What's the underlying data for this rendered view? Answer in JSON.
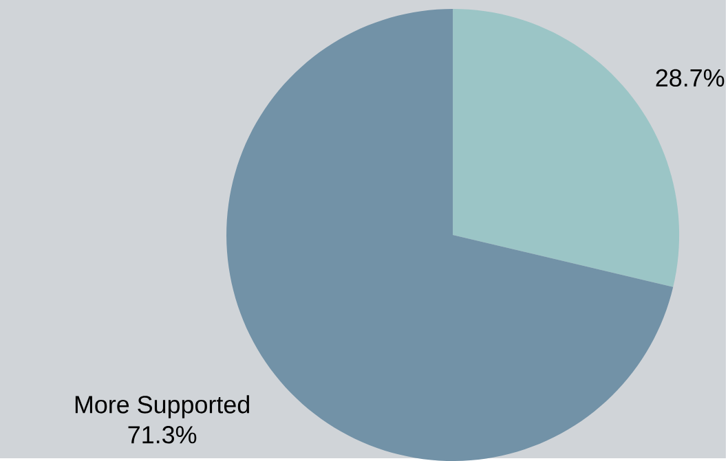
{
  "chart_data": {
    "type": "pie",
    "categories": [
      null,
      "More Supported"
    ],
    "values": [
      28.7,
      71.3
    ],
    "colors": [
      "#9bc5c6",
      "#7292a7"
    ],
    "value_labels": [
      "28.7%",
      "71.3%"
    ]
  }
}
